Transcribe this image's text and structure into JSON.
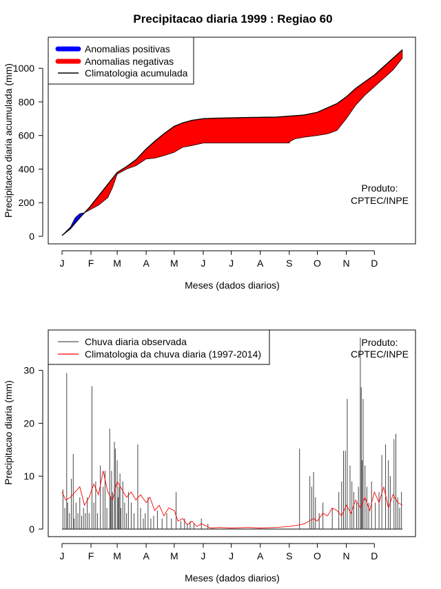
{
  "title": "Precipitacao diaria 1999 : Regiao 60",
  "chart_data": [
    {
      "type": "area",
      "ylabel": "Precipitacao diaria acumulada (mm)",
      "xlabel": "Meses (dados diarios)",
      "x_tick_labels": [
        "J",
        "F",
        "M",
        "A",
        "M",
        "J",
        "J",
        "A",
        "S",
        "O",
        "N",
        "D"
      ],
      "x_tick_days": [
        1,
        32,
        60,
        91,
        121,
        152,
        182,
        213,
        244,
        274,
        305,
        335
      ],
      "xlim": [
        1,
        365
      ],
      "ylim": [
        0,
        1140
      ],
      "y_ticks": [
        0,
        200,
        400,
        600,
        800,
        1000
      ],
      "legend_position": "top-left",
      "legend": [
        {
          "label": "Anomalias positivas",
          "color": "#0000ff",
          "style": "thick"
        },
        {
          "label": "Anomalias negativas",
          "color": "#ff0000",
          "style": "thick"
        },
        {
          "label": "Climatologia acumulada",
          "color": "#000000",
          "style": "line"
        }
      ],
      "annotation": [
        "Produto:",
        "CPTEC/INPE"
      ],
      "climatology_cumulative": {
        "day": [
          1,
          10,
          20,
          30,
          40,
          50,
          60,
          70,
          80,
          91,
          100,
          110,
          121,
          130,
          140,
          152,
          165,
          182,
          200,
          213,
          230,
          244,
          260,
          274,
          285,
          295,
          305,
          315,
          325,
          335,
          345,
          355,
          365
        ],
        "value": [
          5,
          45,
          110,
          170,
          240,
          310,
          380,
          415,
          455,
          520,
          565,
          610,
          655,
          675,
          690,
          700,
          703,
          705,
          707,
          708,
          710,
          715,
          722,
          738,
          765,
          790,
          830,
          880,
          920,
          960,
          1010,
          1060,
          1110
        ]
      },
      "observed_cumulative": {
        "day": [
          1,
          10,
          15,
          20,
          25,
          30,
          40,
          50,
          55,
          60,
          70,
          80,
          91,
          100,
          110,
          121,
          130,
          140,
          152,
          170,
          182,
          200,
          213,
          230,
          244,
          245,
          250,
          260,
          274,
          285,
          290,
          295,
          305,
          315,
          325,
          335,
          345,
          355,
          365
        ],
        "value": [
          5,
          55,
          110,
          135,
          140,
          155,
          185,
          230,
          290,
          370,
          400,
          420,
          460,
          465,
          480,
          500,
          530,
          540,
          555,
          555,
          555,
          555,
          555,
          555,
          555,
          565,
          580,
          590,
          600,
          610,
          620,
          630,
          700,
          780,
          840,
          890,
          940,
          990,
          1060
        ]
      }
    },
    {
      "type": "bar",
      "ylabel": "Precipitacao diaria (mm)",
      "xlabel": "Meses (dados diarios)",
      "x_tick_labels": [
        "J",
        "F",
        "M",
        "A",
        "M",
        "J",
        "J",
        "A",
        "S",
        "O",
        "N",
        "D"
      ],
      "x_tick_days": [
        1,
        32,
        60,
        91,
        121,
        152,
        182,
        213,
        244,
        274,
        305,
        335
      ],
      "xlim": [
        1,
        365
      ],
      "ylim": [
        0,
        36.2
      ],
      "y_ticks": [
        0,
        10,
        20,
        30
      ],
      "legend_position": "top-left",
      "legend": [
        {
          "label": "Chuva diaria observada",
          "color": "#555555",
          "style": "line"
        },
        {
          "label": "Climatologia da chuva diaria (1997-2014)",
          "color": "#ff0000",
          "style": "line"
        }
      ],
      "annotation": [
        "Produto:",
        "CPTEC/INPE"
      ],
      "observed_daily": {
        "day": [
          2,
          4,
          6,
          7,
          9,
          11,
          13,
          14,
          16,
          18,
          20,
          22,
          24,
          26,
          28,
          30,
          33,
          35,
          37,
          39,
          42,
          45,
          47,
          49,
          52,
          53,
          54,
          55,
          57,
          58,
          60,
          61,
          62,
          63,
          64,
          66,
          68,
          70,
          72,
          75,
          78,
          82,
          85,
          88,
          90,
          93,
          96,
          99,
          103,
          108,
          113,
          118,
          123,
          128,
          132,
          135,
          138,
          142,
          150,
          157,
          255,
          266,
          268,
          270,
          272,
          276,
          280,
          290,
          297,
          300,
          302,
          304,
          306,
          309,
          311,
          313,
          316,
          318,
          320,
          321,
          322,
          323,
          325,
          327,
          329,
          332,
          336,
          340,
          343,
          347,
          350,
          352,
          356,
          358,
          360,
          362,
          364
        ],
        "value": [
          7.5,
          4,
          29.5,
          5,
          3,
          9.5,
          14.2,
          2,
          5,
          3,
          6,
          2.5,
          4,
          3,
          6,
          3,
          27,
          5,
          9,
          3,
          12,
          8,
          11,
          4,
          19,
          6,
          11,
          7,
          16.5,
          15.2,
          13,
          6,
          8,
          10.5,
          4,
          9,
          5,
          3,
          7,
          5,
          3,
          16,
          4,
          2,
          3,
          6,
          2,
          2.5,
          3.5,
          2,
          3,
          2,
          7,
          1.5,
          2,
          1,
          1.5,
          1,
          2,
          1,
          15.2,
          10,
          8,
          10.8,
          6,
          3,
          5,
          4,
          7,
          9,
          14.8,
          14.8,
          24.6,
          12,
          9,
          7,
          5,
          8,
          36.2,
          26.8,
          13,
          24.6,
          12,
          8,
          5,
          9,
          5,
          7,
          14,
          16,
          13,
          10,
          17,
          18,
          6,
          4,
          7
        ]
      },
      "climatology_daily": {
        "day": [
          1,
          5,
          10,
          15,
          20,
          25,
          30,
          35,
          40,
          45,
          50,
          55,
          60,
          65,
          70,
          75,
          80,
          85,
          91,
          95,
          100,
          105,
          110,
          115,
          121,
          125,
          130,
          135,
          140,
          145,
          150,
          155,
          160,
          170,
          182,
          200,
          213,
          230,
          244,
          255,
          260,
          265,
          270,
          274,
          280,
          285,
          290,
          295,
          300,
          305,
          310,
          315,
          320,
          325,
          330,
          335,
          340,
          345,
          350,
          355,
          360,
          365
        ],
        "value": [
          7,
          5.5,
          6,
          7,
          8,
          4.5,
          6,
          8.5,
          6.5,
          11,
          7,
          5.5,
          9,
          7.5,
          6,
          7,
          5.5,
          6.5,
          5,
          6,
          3.5,
          4.5,
          2.5,
          4,
          3.5,
          1.5,
          2,
          0.8,
          1.5,
          0.5,
          1,
          0.6,
          0.2,
          0.3,
          0.2,
          0.3,
          0.2,
          0.3,
          0.5,
          0.8,
          1,
          1.5,
          2,
          1.5,
          3,
          2.5,
          4,
          3.5,
          2.5,
          4.5,
          3,
          5.5,
          4,
          6,
          3.5,
          7,
          5,
          8,
          4,
          6.5,
          5,
          4.5
        ]
      }
    }
  ]
}
